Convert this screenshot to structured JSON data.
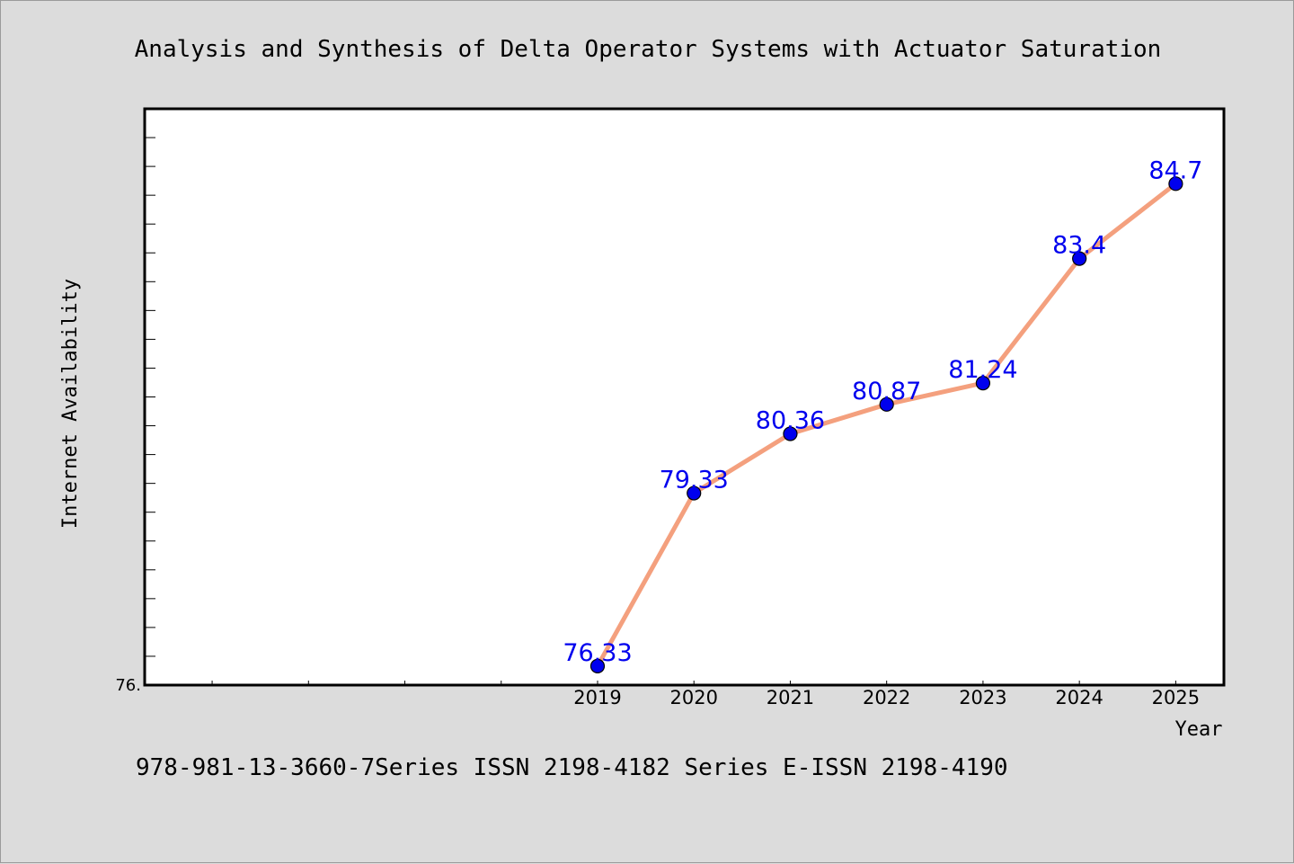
{
  "chart_data": {
    "type": "line",
    "title": "Analysis and Synthesis of Delta Operator Systems with Actuator Saturation",
    "xlabel": "Year",
    "ylabel": "Internet Availability",
    "footer": "978-981-13-3660-7Series ISSN 2198-4182 Series E-ISSN 2198-4190",
    "categories": [
      "2019",
      "2020",
      "2021",
      "2022",
      "2023",
      "2024",
      "2025"
    ],
    "series": [
      {
        "values": [
          76.33,
          79.33,
          80.36,
          80.87,
          81.24,
          83.4,
          84.7
        ],
        "data_labels": [
          "76.33",
          "79.33",
          "80.36",
          "80.87",
          "81.24",
          "83.4",
          "84.7"
        ],
        "line_color": "#f4a07e",
        "marker_color": "#0000ee"
      }
    ],
    "x_range": [
      2014.3,
      2025.5
    ],
    "ylim": [
      76.0,
      86.0
    ],
    "ytick_labels": [
      "76."
    ],
    "data_label_color": "#0000ee",
    "plot_background": "#ffffff",
    "figure_background": "#dcdcdc",
    "grid": false,
    "legend": "none"
  }
}
